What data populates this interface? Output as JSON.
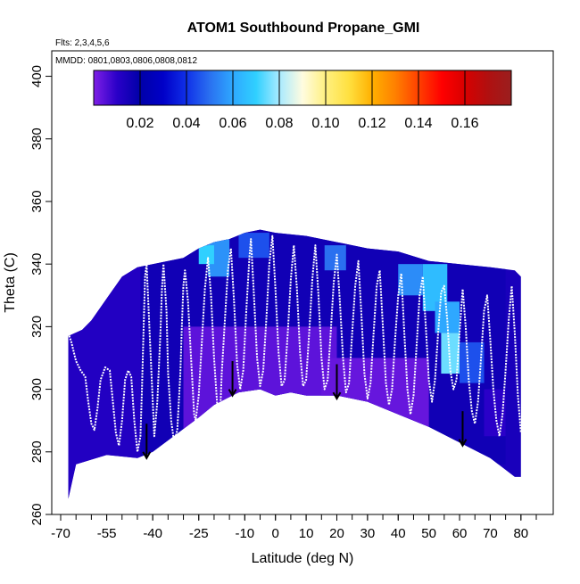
{
  "chart_data": {
    "type": "heatmap",
    "title": "ATOM1 Southbound Propane_GMI",
    "subtitle_flights": "Flts: 2,3,4,5,6",
    "subtitle_dates": "MMDD: 0801,0803,0806,0808,0812",
    "xlabel": "Latitude (deg N)",
    "ylabel": "Theta (C)",
    "xlim": [
      -70,
      85
    ],
    "ylim": [
      260,
      405
    ],
    "x_ticks": [
      -70,
      -55,
      -40,
      -25,
      -10,
      0,
      10,
      20,
      30,
      40,
      50,
      60,
      70,
      80
    ],
    "y_ticks": [
      260,
      280,
      300,
      320,
      340,
      360,
      380,
      400
    ],
    "colorbar": {
      "range": [
        0,
        0.18
      ],
      "ticks": [
        0.02,
        0.04,
        0.06,
        0.08,
        0.1,
        0.12,
        0.14,
        0.16
      ],
      "tick_labels": [
        "0.02",
        "0.04",
        "0.06",
        "0.08",
        "0.10",
        "0.12",
        "0.14",
        "0.16"
      ],
      "colors": [
        "#7f1fe6",
        "#2a00c8",
        "#0000a8",
        "#0000c8",
        "#1030e8",
        "#2a70f0",
        "#2ea8ff",
        "#30d0ff",
        "#a8eaff",
        "#fffce0",
        "#fff080",
        "#ffe040",
        "#ffb000",
        "#ff8000",
        "#ff4000",
        "#ff0000",
        "#d80000",
        "#b01010",
        "#9a1f1f"
      ]
    },
    "bottom_boundary": [
      [
        -67.5,
        265
      ],
      [
        -65,
        276
      ],
      [
        -55,
        279
      ],
      [
        -45,
        278
      ],
      [
        -40,
        280
      ],
      [
        -25,
        291
      ],
      [
        -20,
        295
      ],
      [
        -12,
        299
      ],
      [
        -5,
        300
      ],
      [
        0,
        298
      ],
      [
        5,
        299
      ],
      [
        10,
        298
      ],
      [
        20,
        298
      ],
      [
        30,
        296
      ],
      [
        40,
        292
      ],
      [
        50,
        288
      ],
      [
        60,
        283
      ],
      [
        70,
        278
      ],
      [
        78,
        272
      ],
      [
        80,
        272
      ]
    ],
    "top_boundary": [
      [
        -67.5,
        317
      ],
      [
        -63,
        319
      ],
      [
        -60,
        322
      ],
      [
        -55,
        329
      ],
      [
        -50,
        336
      ],
      [
        -45,
        339
      ],
      [
        -40,
        340
      ],
      [
        -30,
        342
      ],
      [
        -25,
        345
      ],
      [
        -20,
        347
      ],
      [
        -15,
        348
      ],
      [
        -10,
        350
      ],
      [
        -5,
        351
      ],
      [
        0,
        350
      ],
      [
        10,
        349
      ],
      [
        20,
        347
      ],
      [
        30,
        345
      ],
      [
        40,
        344
      ],
      [
        50,
        341
      ],
      [
        60,
        340
      ],
      [
        70,
        339
      ],
      [
        78,
        338
      ],
      [
        80,
        336
      ]
    ],
    "field_cells": [
      {
        "x": [
          -68,
          -44
        ],
        "y": [
          265,
          340
        ],
        "value": 0.012
      },
      {
        "x": [
          -44,
          75
        ],
        "y": [
          276,
          352
        ],
        "value": 0.016
      },
      {
        "x": [
          -30,
          20
        ],
        "y": [
          285,
          320
        ],
        "value": 0.004
      },
      {
        "x": [
          15,
          50
        ],
        "y": [
          288,
          310
        ],
        "value": 0.003
      },
      {
        "x": [
          -22,
          -15
        ],
        "y": [
          336,
          348
        ],
        "value": 0.056
      },
      {
        "x": [
          -25,
          -20
        ],
        "y": [
          340,
          346
        ],
        "value": 0.07
      },
      {
        "x": [
          -12,
          -2
        ],
        "y": [
          342,
          350
        ],
        "value": 0.045
      },
      {
        "x": [
          16,
          23
        ],
        "y": [
          338,
          346
        ],
        "value": 0.05
      },
      {
        "x": [
          40,
          48
        ],
        "y": [
          330,
          340
        ],
        "value": 0.055
      },
      {
        "x": [
          48,
          56
        ],
        "y": [
          325,
          340
        ],
        "value": 0.065
      },
      {
        "x": [
          52,
          60
        ],
        "y": [
          318,
          328
        ],
        "value": 0.06
      },
      {
        "x": [
          54,
          60
        ],
        "y": [
          305,
          318
        ],
        "value": 0.075
      },
      {
        "x": [
          60,
          68
        ],
        "y": [
          302,
          315
        ],
        "value": 0.045
      },
      {
        "x": [
          68,
          75
        ],
        "y": [
          285,
          300
        ],
        "value": 0.01
      }
    ],
    "flight_track": [
      [
        -67.5,
        318
      ],
      [
        -66.5,
        315
      ],
      [
        -65,
        309
      ],
      [
        -63.5,
        306
      ],
      [
        -62,
        304
      ],
      [
        -61,
        296
      ],
      [
        -60,
        289
      ],
      [
        -59,
        287
      ],
      [
        -58,
        294
      ],
      [
        -57,
        303
      ],
      [
        -55.5,
        307
      ],
      [
        -54,
        306
      ],
      [
        -53,
        296
      ],
      [
        -52,
        286
      ],
      [
        -51,
        282
      ],
      [
        -50,
        290
      ],
      [
        -49,
        303
      ],
      [
        -48,
        306
      ],
      [
        -47,
        304
      ],
      [
        -46,
        290
      ],
      [
        -45,
        280
      ],
      [
        -44,
        285
      ],
      [
        -43.5,
        300
      ],
      [
        -43,
        318
      ],
      [
        -42.5,
        336
      ],
      [
        -42,
        340
      ],
      [
        -41,
        318
      ],
      [
        -40,
        296
      ],
      [
        -39.5,
        285
      ],
      [
        -38.5,
        296
      ],
      [
        -37.5,
        318
      ],
      [
        -37,
        332
      ],
      [
        -36.5,
        340
      ],
      [
        -35.5,
        325
      ],
      [
        -35,
        305
      ],
      [
        -34,
        290
      ],
      [
        -33,
        283
      ],
      [
        -32,
        287
      ],
      [
        -31,
        305
      ],
      [
        -30.5,
        320
      ],
      [
        -30,
        333
      ],
      [
        -29.5,
        338
      ],
      [
        -28.5,
        328
      ],
      [
        -27.5,
        310
      ],
      [
        -26.5,
        292
      ],
      [
        -26,
        290
      ],
      [
        -25,
        298
      ],
      [
        -24,
        315
      ],
      [
        -23,
        332
      ],
      [
        -22,
        342
      ],
      [
        -21,
        330
      ],
      [
        -20,
        310
      ],
      [
        -19,
        295
      ],
      [
        -18,
        293
      ],
      [
        -17.5,
        305
      ],
      [
        -16.5,
        322
      ],
      [
        -15.5,
        338
      ],
      [
        -14.5,
        345
      ],
      [
        -13.5,
        328
      ],
      [
        -12.5,
        308
      ],
      [
        -11.5,
        300
      ],
      [
        -10.5,
        306
      ],
      [
        -9.5,
        325
      ],
      [
        -8.5,
        342
      ],
      [
        -8,
        348
      ],
      [
        -7,
        330
      ],
      [
        -6,
        310
      ],
      [
        -5,
        301
      ],
      [
        -4,
        306
      ],
      [
        -3,
        322
      ],
      [
        -2,
        340
      ],
      [
        -1,
        349
      ],
      [
        0,
        332
      ],
      [
        1,
        312
      ],
      [
        2,
        301
      ],
      [
        3,
        303
      ],
      [
        4,
        318
      ],
      [
        5,
        335
      ],
      [
        6,
        346
      ],
      [
        7,
        332
      ],
      [
        8,
        312
      ],
      [
        9,
        301
      ],
      [
        10,
        303
      ],
      [
        11,
        318
      ],
      [
        12,
        335
      ],
      [
        13,
        346
      ],
      [
        14,
        330
      ],
      [
        15,
        310
      ],
      [
        16,
        300
      ],
      [
        17,
        303
      ],
      [
        18,
        318
      ],
      [
        19,
        334
      ],
      [
        20,
        343
      ],
      [
        21,
        328
      ],
      [
        22,
        310
      ],
      [
        23,
        299
      ],
      [
        24,
        302
      ],
      [
        25,
        318
      ],
      [
        26,
        333
      ],
      [
        27,
        341
      ],
      [
        28,
        324
      ],
      [
        29,
        305
      ],
      [
        30,
        297
      ],
      [
        31,
        302
      ],
      [
        32,
        318
      ],
      [
        33,
        333
      ],
      [
        34,
        338
      ],
      [
        35,
        320
      ],
      [
        36,
        302
      ],
      [
        37,
        295
      ],
      [
        38,
        300
      ],
      [
        39,
        316
      ],
      [
        40,
        330
      ],
      [
        41,
        337
      ],
      [
        42,
        318
      ],
      [
        43,
        300
      ],
      [
        44,
        292
      ],
      [
        45,
        298
      ],
      [
        46,
        314
      ],
      [
        47,
        330
      ],
      [
        48,
        336
      ],
      [
        49,
        320
      ],
      [
        50,
        303
      ],
      [
        51,
        296
      ],
      [
        52,
        303
      ],
      [
        53,
        318
      ],
      [
        54,
        331
      ],
      [
        55,
        333
      ],
      [
        56,
        322
      ],
      [
        57,
        306
      ],
      [
        58,
        300
      ],
      [
        59,
        303
      ],
      [
        60,
        318
      ],
      [
        61,
        332
      ],
      [
        62,
        320
      ],
      [
        63,
        303
      ],
      [
        64,
        293
      ],
      [
        65,
        289
      ],
      [
        66,
        296
      ],
      [
        67,
        310
      ],
      [
        68,
        325
      ],
      [
        69,
        330
      ],
      [
        70,
        316
      ],
      [
        71,
        300
      ],
      [
        72,
        290
      ],
      [
        73,
        285
      ],
      [
        74,
        292
      ],
      [
        75,
        306
      ],
      [
        76,
        322
      ],
      [
        77,
        333
      ],
      [
        78,
        318
      ],
      [
        79,
        298
      ],
      [
        80,
        286
      ]
    ],
    "descent_arrows": [
      {
        "x": -42,
        "y_start": 289,
        "y_end": 278
      },
      {
        "x": -14,
        "y_start": 309,
        "y_end": 298
      },
      {
        "x": 20,
        "y_start": 308,
        "y_end": 297
      },
      {
        "x": 61,
        "y_start": 293,
        "y_end": 282
      }
    ]
  }
}
